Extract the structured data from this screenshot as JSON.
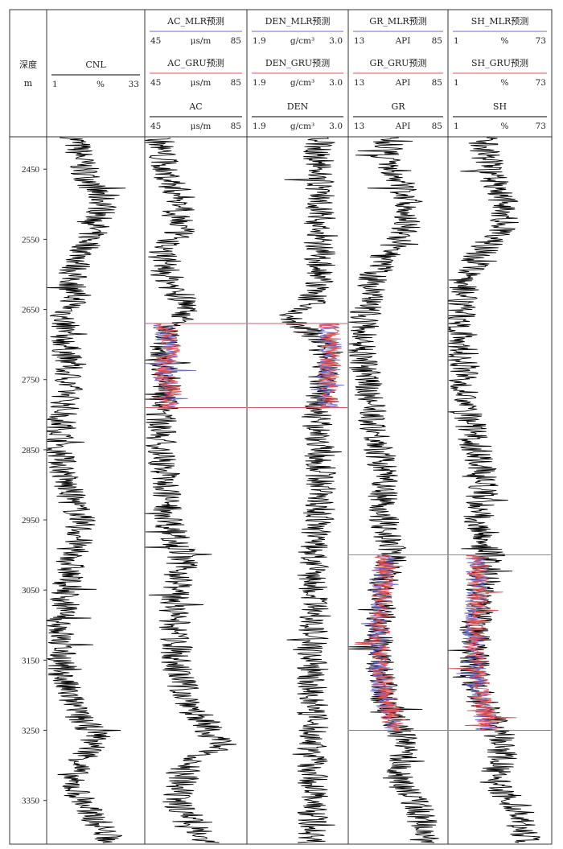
{
  "depth_header": {
    "title": "深度",
    "unit": "m"
  },
  "tracks": [
    {
      "id": "cnl",
      "headers": [
        {
          "title": "CNL",
          "min": "1",
          "unit": "%",
          "max": "33",
          "color": "#000000"
        }
      ]
    },
    {
      "id": "ac",
      "headers": [
        {
          "title": "AC_MLR预测",
          "min": "45",
          "unit": "μs/m",
          "max": "85",
          "color": "#6a6ad0"
        },
        {
          "title": "AC_GRU预测",
          "min": "45",
          "unit": "μs/m",
          "max": "85",
          "color": "#e05050"
        },
        {
          "title": "AC",
          "min": "45",
          "unit": "μs/m",
          "max": "85",
          "color": "#000000"
        }
      ]
    },
    {
      "id": "den",
      "headers": [
        {
          "title": "DEN_MLR预测",
          "min": "1.9",
          "unit": "g/cm³",
          "max": "3.0",
          "color": "#6a6ad0"
        },
        {
          "title": "DEN_GRU预测",
          "min": "1.9",
          "unit": "g/cm³",
          "max": "3.0",
          "color": "#e05050"
        },
        {
          "title": "DEN",
          "min": "1.9",
          "unit": "g/cm³",
          "max": "3.0",
          "color": "#000000"
        }
      ]
    },
    {
      "id": "gr",
      "headers": [
        {
          "title": "GR_MLR预测",
          "min": "13",
          "unit": "API",
          "max": "85",
          "color": "#6a6ad0"
        },
        {
          "title": "GR_GRU预测",
          "min": "13",
          "unit": "API",
          "max": "85",
          "color": "#e05050"
        },
        {
          "title": "GR",
          "min": "13",
          "unit": "API",
          "max": "85",
          "color": "#000000"
        }
      ]
    },
    {
      "id": "sh",
      "headers": [
        {
          "title": "SH_MLR预测",
          "min": "1",
          "unit": "%",
          "max": "73",
          "color": "#6a6ad0"
        },
        {
          "title": "SH_GRU预测",
          "min": "1",
          "unit": "%",
          "max": "73",
          "color": "#e05050"
        },
        {
          "title": "SH",
          "min": "1",
          "unit": "%",
          "max": "73",
          "color": "#000000"
        }
      ]
    }
  ],
  "chart_data": {
    "type": "line",
    "depth_range": [
      2405,
      3410
    ],
    "depth_ticks": [
      2450,
      2550,
      2650,
      2750,
      2850,
      2950,
      3050,
      3150,
      3250,
      3350
    ],
    "depth_tick_labels": [
      "2450",
      "2550",
      "2650",
      "2750",
      "2850",
      "2950",
      "3050",
      "3150",
      "3250",
      "3350"
    ],
    "tracks": [
      {
        "id": "cnl",
        "range": [
          1,
          33
        ],
        "series": [
          {
            "name": "CNL",
            "color": "#000000",
            "depth_from": 2405,
            "depth_to": 3410,
            "points": [
              [
                2405,
                10
              ],
              [
                2450,
                13
              ],
              [
                2475,
                16
              ],
              [
                2500,
                20
              ],
              [
                2530,
                17
              ],
              [
                2560,
                14
              ],
              [
                2600,
                9
              ],
              [
                2640,
                10
              ],
              [
                2660,
                6
              ],
              [
                2700,
                7
              ],
              [
                2760,
                8
              ],
              [
                2800,
                6
              ],
              [
                2850,
                5
              ],
              [
                2900,
                7
              ],
              [
                2950,
                12
              ],
              [
                2980,
                11
              ],
              [
                3000,
                9
              ],
              [
                3030,
                8
              ],
              [
                3080,
                6
              ],
              [
                3120,
                5
              ],
              [
                3180,
                6
              ],
              [
                3230,
                11
              ],
              [
                3260,
                18
              ],
              [
                3280,
                15
              ],
              [
                3320,
                8
              ],
              [
                3360,
                14
              ],
              [
                3400,
                21
              ],
              [
                3410,
                22
              ]
            ]
          }
        ]
      },
      {
        "id": "ac",
        "range": [
          45,
          85
        ],
        "series": [
          {
            "name": "AC",
            "color": "#000000",
            "depth_from": 2405,
            "depth_to": 3410,
            "points": [
              [
                2405,
                50
              ],
              [
                2450,
                52
              ],
              [
                2480,
                57
              ],
              [
                2500,
                60
              ],
              [
                2540,
                58
              ],
              [
                2570,
                52
              ],
              [
                2600,
                53
              ],
              [
                2640,
                60
              ],
              [
                2650,
                64
              ],
              [
                2680,
                52
              ],
              [
                2720,
                53
              ],
              [
                2760,
                53
              ],
              [
                2800,
                51
              ],
              [
                2850,
                51
              ],
              [
                2900,
                53
              ],
              [
                2960,
                55
              ],
              [
                3000,
                60
              ],
              [
                3040,
                58
              ],
              [
                3080,
                56
              ],
              [
                3120,
                57
              ],
              [
                3160,
                57
              ],
              [
                3200,
                61
              ],
              [
                3250,
                70
              ],
              [
                3270,
                75
              ],
              [
                3300,
                62
              ],
              [
                3350,
                56
              ],
              [
                3380,
                65
              ],
              [
                3410,
                70
              ]
            ]
          },
          {
            "name": "AC_MLR预测",
            "color": "#6a6ad0",
            "depth_from": 2670,
            "depth_to": 2790,
            "points": [
              [
                2670,
                51
              ],
              [
                2690,
                53
              ],
              [
                2710,
                54
              ],
              [
                2730,
                53
              ],
              [
                2750,
                52
              ],
              [
                2770,
                54
              ],
              [
                2790,
                53
              ]
            ]
          },
          {
            "name": "AC_GRU预测",
            "color": "#e05050",
            "depth_from": 2670,
            "depth_to": 2790,
            "points": [
              [
                2670,
                52
              ],
              [
                2690,
                55
              ],
              [
                2710,
                54
              ],
              [
                2730,
                52
              ],
              [
                2750,
                53
              ],
              [
                2770,
                55
              ],
              [
                2790,
                54
              ]
            ]
          }
        ]
      },
      {
        "id": "den",
        "range": [
          1.9,
          3.0
        ],
        "series": [
          {
            "name": "DEN",
            "color": "#000000",
            "depth_from": 2405,
            "depth_to": 3410,
            "points": [
              [
                2405,
                2.7
              ],
              [
                2450,
                2.68
              ],
              [
                2500,
                2.72
              ],
              [
                2550,
                2.68
              ],
              [
                2600,
                2.72
              ],
              [
                2640,
                2.6
              ],
              [
                2660,
                2.35
              ],
              [
                2700,
                2.75
              ],
              [
                2760,
                2.72
              ],
              [
                2800,
                2.65
              ],
              [
                2850,
                2.7
              ],
              [
                2900,
                2.72
              ],
              [
                2950,
                2.68
              ],
              [
                3000,
                2.62
              ],
              [
                3050,
                2.62
              ],
              [
                3150,
                2.62
              ],
              [
                3250,
                2.62
              ],
              [
                3350,
                2.63
              ],
              [
                3410,
                2.62
              ]
            ]
          },
          {
            "name": "DEN_MLR预测",
            "color": "#6a6ad0",
            "depth_from": 2670,
            "depth_to": 2790,
            "points": [
              [
                2670,
                2.78
              ],
              [
                2700,
                2.82
              ],
              [
                2730,
                2.8
              ],
              [
                2760,
                2.78
              ],
              [
                2790,
                2.8
              ]
            ]
          },
          {
            "name": "DEN_GRU预测",
            "color": "#e05050",
            "depth_from": 2670,
            "depth_to": 2790,
            "points": [
              [
                2670,
                2.8
              ],
              [
                2700,
                2.84
              ],
              [
                2730,
                2.82
              ],
              [
                2760,
                2.8
              ],
              [
                2790,
                2.82
              ]
            ]
          }
        ]
      },
      {
        "id": "gr",
        "range": [
          13,
          85
        ],
        "series": [
          {
            "name": "GR",
            "color": "#000000",
            "depth_from": 2405,
            "depth_to": 3410,
            "points": [
              [
                2405,
                40
              ],
              [
                2450,
                45
              ],
              [
                2490,
                55
              ],
              [
                2520,
                58
              ],
              [
                2560,
                45
              ],
              [
                2600,
                30
              ],
              [
                2650,
                25
              ],
              [
                2700,
                22
              ],
              [
                2750,
                25
              ],
              [
                2800,
                30
              ],
              [
                2850,
                35
              ],
              [
                2900,
                40
              ],
              [
                2950,
                38
              ],
              [
                3000,
                45
              ],
              [
                3050,
                37
              ],
              [
                3100,
                35
              ],
              [
                3150,
                34
              ],
              [
                3200,
                38
              ],
              [
                3250,
                50
              ],
              [
                3280,
                55
              ],
              [
                3320,
                48
              ],
              [
                3360,
                65
              ],
              [
                3400,
                68
              ],
              [
                3410,
                70
              ]
            ]
          },
          {
            "name": "GR_MLR预测",
            "color": "#6a6ad0",
            "depth_from": 3000,
            "depth_to": 3250,
            "points": [
              [
                3000,
                38
              ],
              [
                3040,
                37
              ],
              [
                3080,
                35
              ],
              [
                3120,
                34
              ],
              [
                3160,
                35
              ],
              [
                3200,
                38
              ],
              [
                3230,
                42
              ],
              [
                3250,
                44
              ]
            ]
          },
          {
            "name": "GR_GRU预测",
            "color": "#e05050",
            "depth_from": 3000,
            "depth_to": 3250,
            "points": [
              [
                3000,
                39
              ],
              [
                3040,
                38
              ],
              [
                3080,
                36
              ],
              [
                3120,
                35
              ],
              [
                3160,
                36
              ],
              [
                3200,
                40
              ],
              [
                3230,
                44
              ],
              [
                3250,
                46
              ]
            ]
          }
        ]
      },
      {
        "id": "sh",
        "range": [
          1,
          73
        ],
        "series": [
          {
            "name": "SH",
            "color": "#000000",
            "depth_from": 2405,
            "depth_to": 3410,
            "points": [
              [
                2405,
                25
              ],
              [
                2450,
                30
              ],
              [
                2490,
                40
              ],
              [
                2520,
                42
              ],
              [
                2560,
                28
              ],
              [
                2600,
                12
              ],
              [
                2650,
                8
              ],
              [
                2700,
                10
              ],
              [
                2750,
                12
              ],
              [
                2800,
                15
              ],
              [
                2850,
                20
              ],
              [
                2900,
                25
              ],
              [
                2950,
                22
              ],
              [
                3000,
                30
              ],
              [
                3050,
                22
              ],
              [
                3100,
                20
              ],
              [
                3150,
                18
              ],
              [
                3200,
                22
              ],
              [
                3250,
                35
              ],
              [
                3280,
                40
              ],
              [
                3320,
                32
              ],
              [
                3360,
                50
              ],
              [
                3400,
                55
              ],
              [
                3410,
                56
              ]
            ]
          },
          {
            "name": "SH_MLR预测",
            "color": "#6a6ad0",
            "depth_from": 3000,
            "depth_to": 3250,
            "points": [
              [
                3000,
                20
              ],
              [
                3040,
                21
              ],
              [
                3080,
                19
              ],
              [
                3120,
                18
              ],
              [
                3160,
                19
              ],
              [
                3200,
                22
              ],
              [
                3230,
                26
              ],
              [
                3250,
                28
              ]
            ]
          },
          {
            "name": "SH_GRU预测",
            "color": "#e05050",
            "depth_from": 3000,
            "depth_to": 3250,
            "points": [
              [
                3000,
                21
              ],
              [
                3040,
                22
              ],
              [
                3080,
                20
              ],
              [
                3120,
                19
              ],
              [
                3160,
                20
              ],
              [
                3200,
                24
              ],
              [
                3230,
                28
              ],
              [
                3250,
                30
              ]
            ]
          }
        ]
      }
    ]
  }
}
